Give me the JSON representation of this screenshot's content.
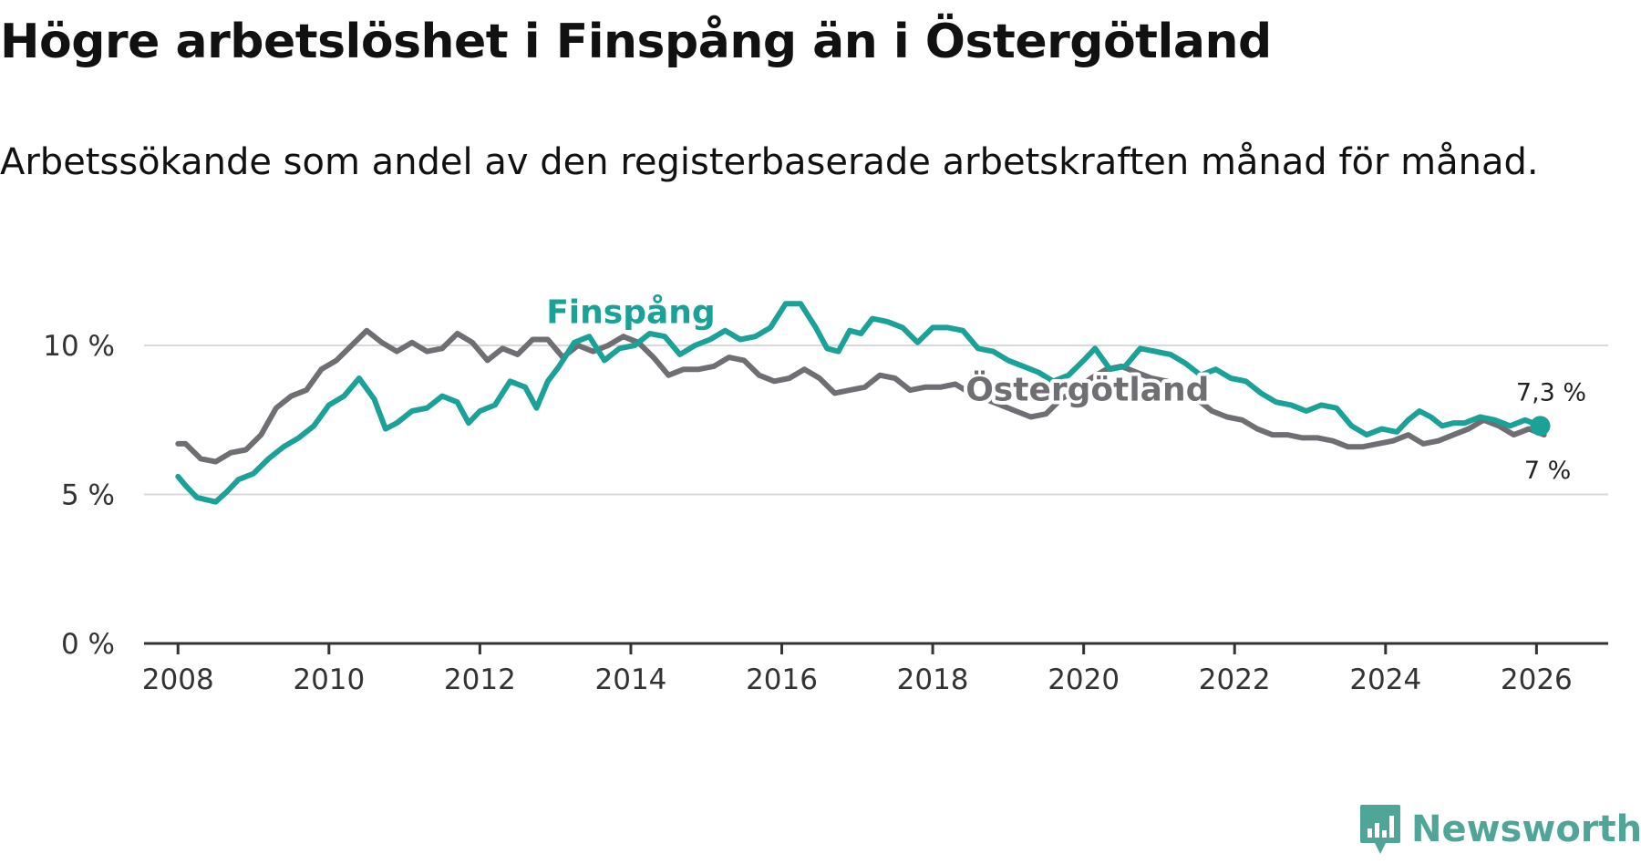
{
  "title": "Högre arbetslöshet i Finspång än i Östergötland",
  "subtitle": "Arbetssökande som andel av den registerbaserade arbetskraften månad för månad.",
  "brand": {
    "name": "Newsworthy",
    "color": "#4fa597"
  },
  "colors": {
    "finspang": "#1aa198",
    "ostergotland": "#6e6e73",
    "grid": "#d9d9d9",
    "axis": "#333333"
  },
  "chart_data": {
    "type": "line",
    "title": "Högre arbetslöshet i Finspång än i Östergötland",
    "subtitle": "Arbetssökande som andel av den registerbaserade arbetskraften månad för månad.",
    "xlabel": "",
    "ylabel": "",
    "xlim": [
      2007.55,
      2026.95
    ],
    "ylim": [
      0,
      11.5
    ],
    "grid": true,
    "x_ticks": [
      {
        "value": 2008,
        "label": "2008"
      },
      {
        "value": 2010,
        "label": "2010"
      },
      {
        "value": 2012,
        "label": "2012"
      },
      {
        "value": 2014,
        "label": "2014"
      },
      {
        "value": 2016,
        "label": "2016"
      },
      {
        "value": 2018,
        "label": "2018"
      },
      {
        "value": 2020,
        "label": "2020"
      },
      {
        "value": 2022,
        "label": "2022"
      },
      {
        "value": 2024,
        "label": "2024"
      },
      {
        "value": 2026,
        "label": "2026"
      }
    ],
    "y_ticks": [
      {
        "value": 0,
        "label": "0 %"
      },
      {
        "value": 5,
        "label": "5 %"
      },
      {
        "value": 10,
        "label": "10 %"
      }
    ],
    "series": [
      {
        "name": "Östergötland",
        "label": "Östergötland",
        "end_label": "7 %",
        "points": [
          [
            2008.0,
            6.7
          ],
          [
            2008.1,
            6.7
          ],
          [
            2008.3,
            6.2
          ],
          [
            2008.5,
            6.1
          ],
          [
            2008.7,
            6.4
          ],
          [
            2008.9,
            6.5
          ],
          [
            2009.1,
            7.0
          ],
          [
            2009.3,
            7.9
          ],
          [
            2009.5,
            8.3
          ],
          [
            2009.7,
            8.5
          ],
          [
            2009.9,
            9.2
          ],
          [
            2010.1,
            9.5
          ],
          [
            2010.3,
            10.0
          ],
          [
            2010.5,
            10.5
          ],
          [
            2010.7,
            10.1
          ],
          [
            2010.9,
            9.8
          ],
          [
            2011.1,
            10.1
          ],
          [
            2011.3,
            9.8
          ],
          [
            2011.5,
            9.9
          ],
          [
            2011.7,
            10.4
          ],
          [
            2011.9,
            10.1
          ],
          [
            2012.1,
            9.5
          ],
          [
            2012.3,
            9.9
          ],
          [
            2012.5,
            9.7
          ],
          [
            2012.7,
            10.2
          ],
          [
            2012.9,
            10.2
          ],
          [
            2013.1,
            9.6
          ],
          [
            2013.3,
            10.0
          ],
          [
            2013.5,
            9.8
          ],
          [
            2013.7,
            10.0
          ],
          [
            2013.9,
            10.3
          ],
          [
            2014.1,
            10.1
          ],
          [
            2014.3,
            9.6
          ],
          [
            2014.5,
            9.0
          ],
          [
            2014.7,
            9.2
          ],
          [
            2014.9,
            9.2
          ],
          [
            2015.1,
            9.3
          ],
          [
            2015.3,
            9.6
          ],
          [
            2015.5,
            9.5
          ],
          [
            2015.7,
            9.0
          ],
          [
            2015.9,
            8.8
          ],
          [
            2016.1,
            8.9
          ],
          [
            2016.3,
            9.2
          ],
          [
            2016.5,
            8.9
          ],
          [
            2016.7,
            8.4
          ],
          [
            2016.9,
            8.5
          ],
          [
            2017.1,
            8.6
          ],
          [
            2017.3,
            9.0
          ],
          [
            2017.5,
            8.9
          ],
          [
            2017.7,
            8.5
          ],
          [
            2017.9,
            8.6
          ],
          [
            2018.1,
            8.6
          ],
          [
            2018.3,
            8.7
          ],
          [
            2018.5,
            8.4
          ],
          [
            2018.7,
            8.2
          ],
          [
            2018.9,
            8.0
          ],
          [
            2019.1,
            7.8
          ],
          [
            2019.3,
            7.6
          ],
          [
            2019.5,
            7.7
          ],
          [
            2019.7,
            8.2
          ],
          [
            2019.9,
            8.5
          ],
          [
            2020.1,
            8.9
          ],
          [
            2020.3,
            9.2
          ],
          [
            2020.5,
            9.3
          ],
          [
            2020.7,
            9.1
          ],
          [
            2020.9,
            8.9
          ],
          [
            2021.1,
            8.8
          ],
          [
            2021.3,
            8.6
          ],
          [
            2021.5,
            8.2
          ],
          [
            2021.7,
            7.8
          ],
          [
            2021.9,
            7.6
          ],
          [
            2022.1,
            7.5
          ],
          [
            2022.3,
            7.2
          ],
          [
            2022.5,
            7.0
          ],
          [
            2022.7,
            7.0
          ],
          [
            2022.9,
            6.9
          ],
          [
            2023.1,
            6.9
          ],
          [
            2023.3,
            6.8
          ],
          [
            2023.5,
            6.6
          ],
          [
            2023.7,
            6.6
          ],
          [
            2023.9,
            6.7
          ],
          [
            2024.1,
            6.8
          ],
          [
            2024.3,
            7.0
          ],
          [
            2024.5,
            6.7
          ],
          [
            2024.7,
            6.8
          ],
          [
            2024.9,
            7.0
          ],
          [
            2025.1,
            7.2
          ],
          [
            2025.3,
            7.5
          ],
          [
            2025.5,
            7.3
          ],
          [
            2025.7,
            7.0
          ],
          [
            2025.9,
            7.2
          ],
          [
            2026.1,
            7.0
          ]
        ]
      },
      {
        "name": "Finspång",
        "label": "Finspång",
        "end_label": "7,3 %",
        "points": [
          [
            2008.0,
            5.6
          ],
          [
            2008.1,
            5.3
          ],
          [
            2008.25,
            4.9
          ],
          [
            2008.5,
            4.75
          ],
          [
            2008.65,
            5.1
          ],
          [
            2008.8,
            5.5
          ],
          [
            2009.0,
            5.7
          ],
          [
            2009.2,
            6.2
          ],
          [
            2009.4,
            6.6
          ],
          [
            2009.6,
            6.9
          ],
          [
            2009.8,
            7.3
          ],
          [
            2010.0,
            8.0
          ],
          [
            2010.2,
            8.3
          ],
          [
            2010.4,
            8.9
          ],
          [
            2010.6,
            8.2
          ],
          [
            2010.75,
            7.2
          ],
          [
            2010.9,
            7.4
          ],
          [
            2011.1,
            7.8
          ],
          [
            2011.3,
            7.9
          ],
          [
            2011.5,
            8.3
          ],
          [
            2011.7,
            8.1
          ],
          [
            2011.85,
            7.4
          ],
          [
            2012.0,
            7.8
          ],
          [
            2012.2,
            8.0
          ],
          [
            2012.4,
            8.8
          ],
          [
            2012.6,
            8.6
          ],
          [
            2012.75,
            7.9
          ],
          [
            2012.9,
            8.8
          ],
          [
            2013.05,
            9.3
          ],
          [
            2013.25,
            10.1
          ],
          [
            2013.45,
            10.3
          ],
          [
            2013.65,
            9.5
          ],
          [
            2013.85,
            9.9
          ],
          [
            2014.05,
            10.0
          ],
          [
            2014.25,
            10.4
          ],
          [
            2014.45,
            10.3
          ],
          [
            2014.65,
            9.7
          ],
          [
            2014.85,
            10.0
          ],
          [
            2015.05,
            10.2
          ],
          [
            2015.25,
            10.5
          ],
          [
            2015.45,
            10.2
          ],
          [
            2015.65,
            10.3
          ],
          [
            2015.85,
            10.6
          ],
          [
            2016.05,
            11.4
          ],
          [
            2016.25,
            11.4
          ],
          [
            2016.45,
            10.6
          ],
          [
            2016.6,
            9.9
          ],
          [
            2016.75,
            9.8
          ],
          [
            2016.9,
            10.5
          ],
          [
            2017.05,
            10.4
          ],
          [
            2017.2,
            10.9
          ],
          [
            2017.4,
            10.8
          ],
          [
            2017.6,
            10.6
          ],
          [
            2017.8,
            10.1
          ],
          [
            2018.0,
            10.6
          ],
          [
            2018.2,
            10.6
          ],
          [
            2018.4,
            10.5
          ],
          [
            2018.6,
            9.9
          ],
          [
            2018.8,
            9.8
          ],
          [
            2019.0,
            9.5
          ],
          [
            2019.2,
            9.3
          ],
          [
            2019.4,
            9.1
          ],
          [
            2019.6,
            8.8
          ],
          [
            2019.8,
            9.0
          ],
          [
            2020.0,
            9.5
          ],
          [
            2020.15,
            9.9
          ],
          [
            2020.35,
            9.2
          ],
          [
            2020.55,
            9.3
          ],
          [
            2020.75,
            9.9
          ],
          [
            2020.95,
            9.8
          ],
          [
            2021.15,
            9.7
          ],
          [
            2021.35,
            9.4
          ],
          [
            2021.55,
            9.0
          ],
          [
            2021.75,
            9.2
          ],
          [
            2021.95,
            8.9
          ],
          [
            2022.15,
            8.8
          ],
          [
            2022.35,
            8.4
          ],
          [
            2022.55,
            8.1
          ],
          [
            2022.75,
            8.0
          ],
          [
            2022.95,
            7.8
          ],
          [
            2023.15,
            8.0
          ],
          [
            2023.35,
            7.9
          ],
          [
            2023.55,
            7.3
          ],
          [
            2023.75,
            7.0
          ],
          [
            2023.95,
            7.2
          ],
          [
            2024.15,
            7.1
          ],
          [
            2024.3,
            7.5
          ],
          [
            2024.45,
            7.8
          ],
          [
            2024.6,
            7.6
          ],
          [
            2024.75,
            7.3
          ],
          [
            2024.9,
            7.4
          ],
          [
            2025.05,
            7.4
          ],
          [
            2025.25,
            7.6
          ],
          [
            2025.45,
            7.5
          ],
          [
            2025.65,
            7.3
          ],
          [
            2025.85,
            7.5
          ],
          [
            2026.05,
            7.3
          ]
        ]
      }
    ]
  }
}
